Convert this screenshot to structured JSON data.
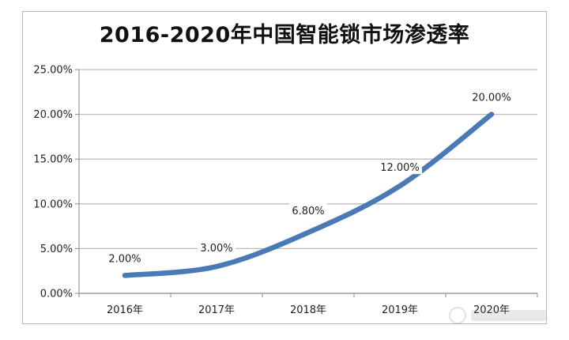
{
  "chart_data": {
    "type": "line",
    "title": "2016-2020年中国智能锁市场渗透率",
    "categories": [
      "2016年",
      "2017年",
      "2018年",
      "2019年",
      "2020年"
    ],
    "series": [
      {
        "values": [
          2.0,
          3.0,
          6.8,
          12.0,
          20.0
        ]
      }
    ],
    "data_labels": [
      "2.00%",
      "3.00%",
      "6.80%",
      "12.00%",
      "20.00%"
    ],
    "y_ticks": [
      "0.00%",
      "5.00%",
      "10.00%",
      "15.00%",
      "20.00%",
      "25.00%"
    ],
    "ylim": [
      0,
      25
    ],
    "grid": true,
    "legend": "none",
    "colors": {
      "line": "#4a7ab5",
      "grid": "#bdbdbd",
      "axis": "#888888"
    }
  }
}
